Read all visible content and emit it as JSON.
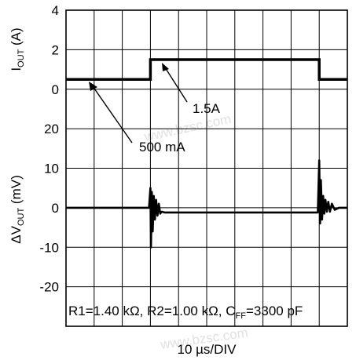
{
  "chart_data": [
    {
      "type": "line",
      "panel": "top",
      "ylabel": {
        "main": "I",
        "sub": "OUT",
        "unit": " (A)"
      },
      "ylim": [
        0,
        4
      ],
      "yticks": [
        "4",
        "2",
        "0"
      ],
      "xlim": [
        0,
        10
      ],
      "x_divisions": 10,
      "grid": true,
      "series": [
        {
          "x": [
            0,
            3,
            3,
            9,
            9,
            10
          ],
          "y": [
            0.5,
            0.5,
            1.5,
            1.5,
            0.5,
            0.5
          ]
        }
      ],
      "annotations": [
        {
          "text": "1.5A",
          "x": 5,
          "y": 1.5
        },
        {
          "text": "500 mA",
          "x": 2,
          "y": 0.5
        }
      ]
    },
    {
      "type": "line",
      "panel": "bottom",
      "ylabel": {
        "prefix": "ΔV",
        "sub": "OUT",
        "unit": " (mV)"
      },
      "ylim": [
        -20,
        20
      ],
      "yticks": [
        "20",
        "10",
        "0",
        "-10",
        "-20"
      ],
      "xlim": [
        0,
        10
      ],
      "x_divisions": 10,
      "grid": true,
      "series": [
        {
          "x": [
            0,
            2.95,
            3.0,
            3.02,
            3.05,
            3.08,
            3.12,
            3.16,
            3.2,
            3.25,
            3.3,
            3.35,
            3.4,
            3.5,
            3.6,
            3.8,
            4,
            5,
            6,
            7,
            8,
            8.9,
            8.95,
            9.0,
            9.03,
            9.06,
            9.1,
            9.14,
            9.18,
            9.22,
            9.27,
            9.32,
            9.38,
            9.45,
            9.55,
            9.7,
            10
          ],
          "y": [
            0,
            0,
            5,
            -10,
            4,
            -6,
            3,
            -3,
            2,
            -2,
            1,
            -1.5,
            -1,
            -1.2,
            -1.2,
            -1.2,
            -1.2,
            -1.2,
            -1.2,
            -1.2,
            -1.2,
            -1.2,
            -1.2,
            12,
            -4,
            7,
            -3,
            3,
            -1.5,
            2,
            -1,
            1.5,
            -1,
            1,
            -0.5,
            0,
            0
          ]
        }
      ],
      "footer": {
        "r_text": "R1=1.40 kΩ, R2=1.00 kΩ, C",
        "cff_sub": "FF",
        "cff_value": "=3300 pF"
      }
    }
  ],
  "xlabel": "10 µs/DIV",
  "watermark": "www.bzsc.com"
}
